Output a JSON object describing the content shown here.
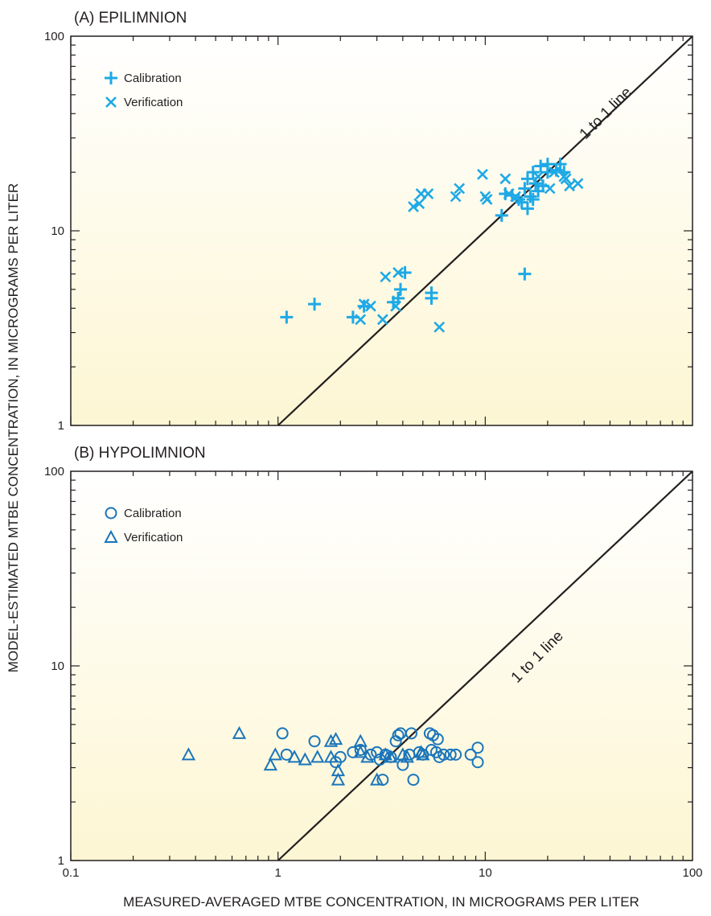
{
  "ylabel": "MODEL-ESTIMATED MTBE CONCENTRATION, IN MICROGRAMS PER LITER",
  "xlabel": "MEASURED-AVERAGED MTBE CONCENTRATION, IN MICROGRAMS PER LITER",
  "colors": {
    "panel_a": "#1ea9e6",
    "panel_b": "#1a75bb",
    "line": "#231f20",
    "bg_top": "#ffffff",
    "bg_bottom": "#fdf6d3"
  },
  "chart_data": [
    {
      "type": "scatter",
      "title": "(A) EPILIMNION",
      "xscale": "log",
      "yscale": "log",
      "xlim": [
        0.1,
        100
      ],
      "ylim": [
        1,
        100
      ],
      "x_ticks": [
        "",
        "",
        "",
        ""
      ],
      "y_ticks": [
        "1",
        "10",
        "100"
      ],
      "legend_placement": "top-left",
      "reference_line": {
        "label": "1 to 1 line",
        "x": [
          1,
          100
        ],
        "y": [
          1,
          100
        ]
      },
      "series": [
        {
          "name": "Calibration",
          "marker": "plus",
          "points": [
            [
              1.1,
              3.6
            ],
            [
              1.5,
              4.2
            ],
            [
              2.3,
              3.6
            ],
            [
              2.6,
              4.1
            ],
            [
              3.6,
              4.3
            ],
            [
              3.8,
              4.5
            ],
            [
              3.9,
              5.0
            ],
            [
              4.1,
              6.1
            ],
            [
              5.5,
              4.5
            ],
            [
              5.5,
              4.8
            ],
            [
              12.0,
              12.0
            ],
            [
              12.5,
              15.5
            ],
            [
              13.5,
              15.2
            ],
            [
              14.5,
              14.5
            ],
            [
              15.0,
              14.0
            ],
            [
              15.5,
              16.5
            ],
            [
              15.5,
              6.0
            ],
            [
              16.0,
              13.0
            ],
            [
              16.0,
              18.5
            ],
            [
              16.5,
              15.0
            ],
            [
              17.0,
              20.0
            ],
            [
              17.0,
              14.5
            ],
            [
              17.5,
              17.5
            ],
            [
              18.0,
              16.0
            ],
            [
              18.5,
              21.5
            ],
            [
              19.0,
              17.0
            ],
            [
              20.0,
              20.0
            ],
            [
              20.0,
              22.0
            ],
            [
              22.0,
              20.5
            ],
            [
              23.0,
              22.0
            ],
            [
              24.0,
              20.0
            ]
          ]
        },
        {
          "name": "Verification",
          "marker": "x",
          "points": [
            [
              2.5,
              3.5
            ],
            [
              2.6,
              4.2
            ],
            [
              2.8,
              4.1
            ],
            [
              3.2,
              3.5
            ],
            [
              3.3,
              5.8
            ],
            [
              3.7,
              4.1
            ],
            [
              3.8,
              6.1
            ],
            [
              4.5,
              13.3
            ],
            [
              4.8,
              13.8
            ],
            [
              4.9,
              15.5
            ],
            [
              5.3,
              15.5
            ],
            [
              6.0,
              3.2
            ],
            [
              7.2,
              15.0
            ],
            [
              7.5,
              16.5
            ],
            [
              9.7,
              19.5
            ],
            [
              10.0,
              15.0
            ],
            [
              10.2,
              14.5
            ],
            [
              12.5,
              18.5
            ],
            [
              13.0,
              15.5
            ],
            [
              14.0,
              15.0
            ],
            [
              18.0,
              19.0
            ],
            [
              20.5,
              16.5
            ],
            [
              21.5,
              20.0
            ],
            [
              24.5,
              18.5
            ],
            [
              25.5,
              17.0
            ],
            [
              28.0,
              17.5
            ],
            [
              24.0,
              19.0
            ]
          ]
        }
      ]
    },
    {
      "type": "scatter",
      "title": "(B) HYPOLIMNION",
      "xscale": "log",
      "yscale": "log",
      "xlim": [
        0.1,
        100
      ],
      "ylim": [
        1,
        100
      ],
      "x_ticks": [
        "0.1",
        "1",
        "10",
        "100"
      ],
      "y_ticks": [
        "1",
        "10",
        "100"
      ],
      "legend_placement": "top-left",
      "reference_line": {
        "label": "1 to 1 line",
        "x": [
          1,
          100
        ],
        "y": [
          1,
          100
        ]
      },
      "series": [
        {
          "name": "Calibration",
          "marker": "circle",
          "points": [
            [
              1.05,
              4.5
            ],
            [
              1.1,
              3.5
            ],
            [
              1.5,
              4.1
            ],
            [
              1.9,
              3.2
            ],
            [
              2.0,
              3.4
            ],
            [
              2.3,
              3.6
            ],
            [
              2.5,
              3.7
            ],
            [
              2.8,
              3.5
            ],
            [
              3.0,
              3.6
            ],
            [
              3.1,
              3.3
            ],
            [
              3.2,
              2.6
            ],
            [
              3.3,
              3.5
            ],
            [
              3.5,
              3.4
            ],
            [
              3.7,
              4.1
            ],
            [
              3.8,
              4.4
            ],
            [
              3.9,
              4.5
            ],
            [
              4.0,
              3.1
            ],
            [
              4.3,
              3.5
            ],
            [
              4.4,
              4.5
            ],
            [
              4.5,
              2.6
            ],
            [
              4.8,
              3.6
            ],
            [
              5.0,
              3.5
            ],
            [
              5.4,
              4.5
            ],
            [
              5.5,
              3.7
            ],
            [
              5.6,
              4.4
            ],
            [
              5.8,
              3.6
            ],
            [
              5.9,
              4.2
            ],
            [
              6.0,
              3.4
            ],
            [
              6.3,
              3.5
            ],
            [
              6.8,
              3.5
            ],
            [
              7.2,
              3.5
            ],
            [
              8.5,
              3.5
            ],
            [
              9.2,
              3.8
            ],
            [
              9.2,
              3.2
            ]
          ]
        },
        {
          "name": "Verification",
          "marker": "triangle",
          "points": [
            [
              0.37,
              3.5
            ],
            [
              0.65,
              4.5
            ],
            [
              0.92,
              3.1
            ],
            [
              0.97,
              3.5
            ],
            [
              1.2,
              3.4
            ],
            [
              1.35,
              3.3
            ],
            [
              1.55,
              3.4
            ],
            [
              1.8,
              4.1
            ],
            [
              1.9,
              4.2
            ],
            [
              1.95,
              2.9
            ],
            [
              1.95,
              2.6
            ],
            [
              1.8,
              3.4
            ],
            [
              2.5,
              4.1
            ],
            [
              2.5,
              3.6
            ],
            [
              2.7,
              3.4
            ],
            [
              3.0,
              2.6
            ],
            [
              3.3,
              3.5
            ],
            [
              3.5,
              3.4
            ],
            [
              4.0,
              3.5
            ],
            [
              4.2,
              3.4
            ],
            [
              4.9,
              3.6
            ],
            [
              5.0,
              3.5
            ]
          ]
        }
      ]
    }
  ]
}
